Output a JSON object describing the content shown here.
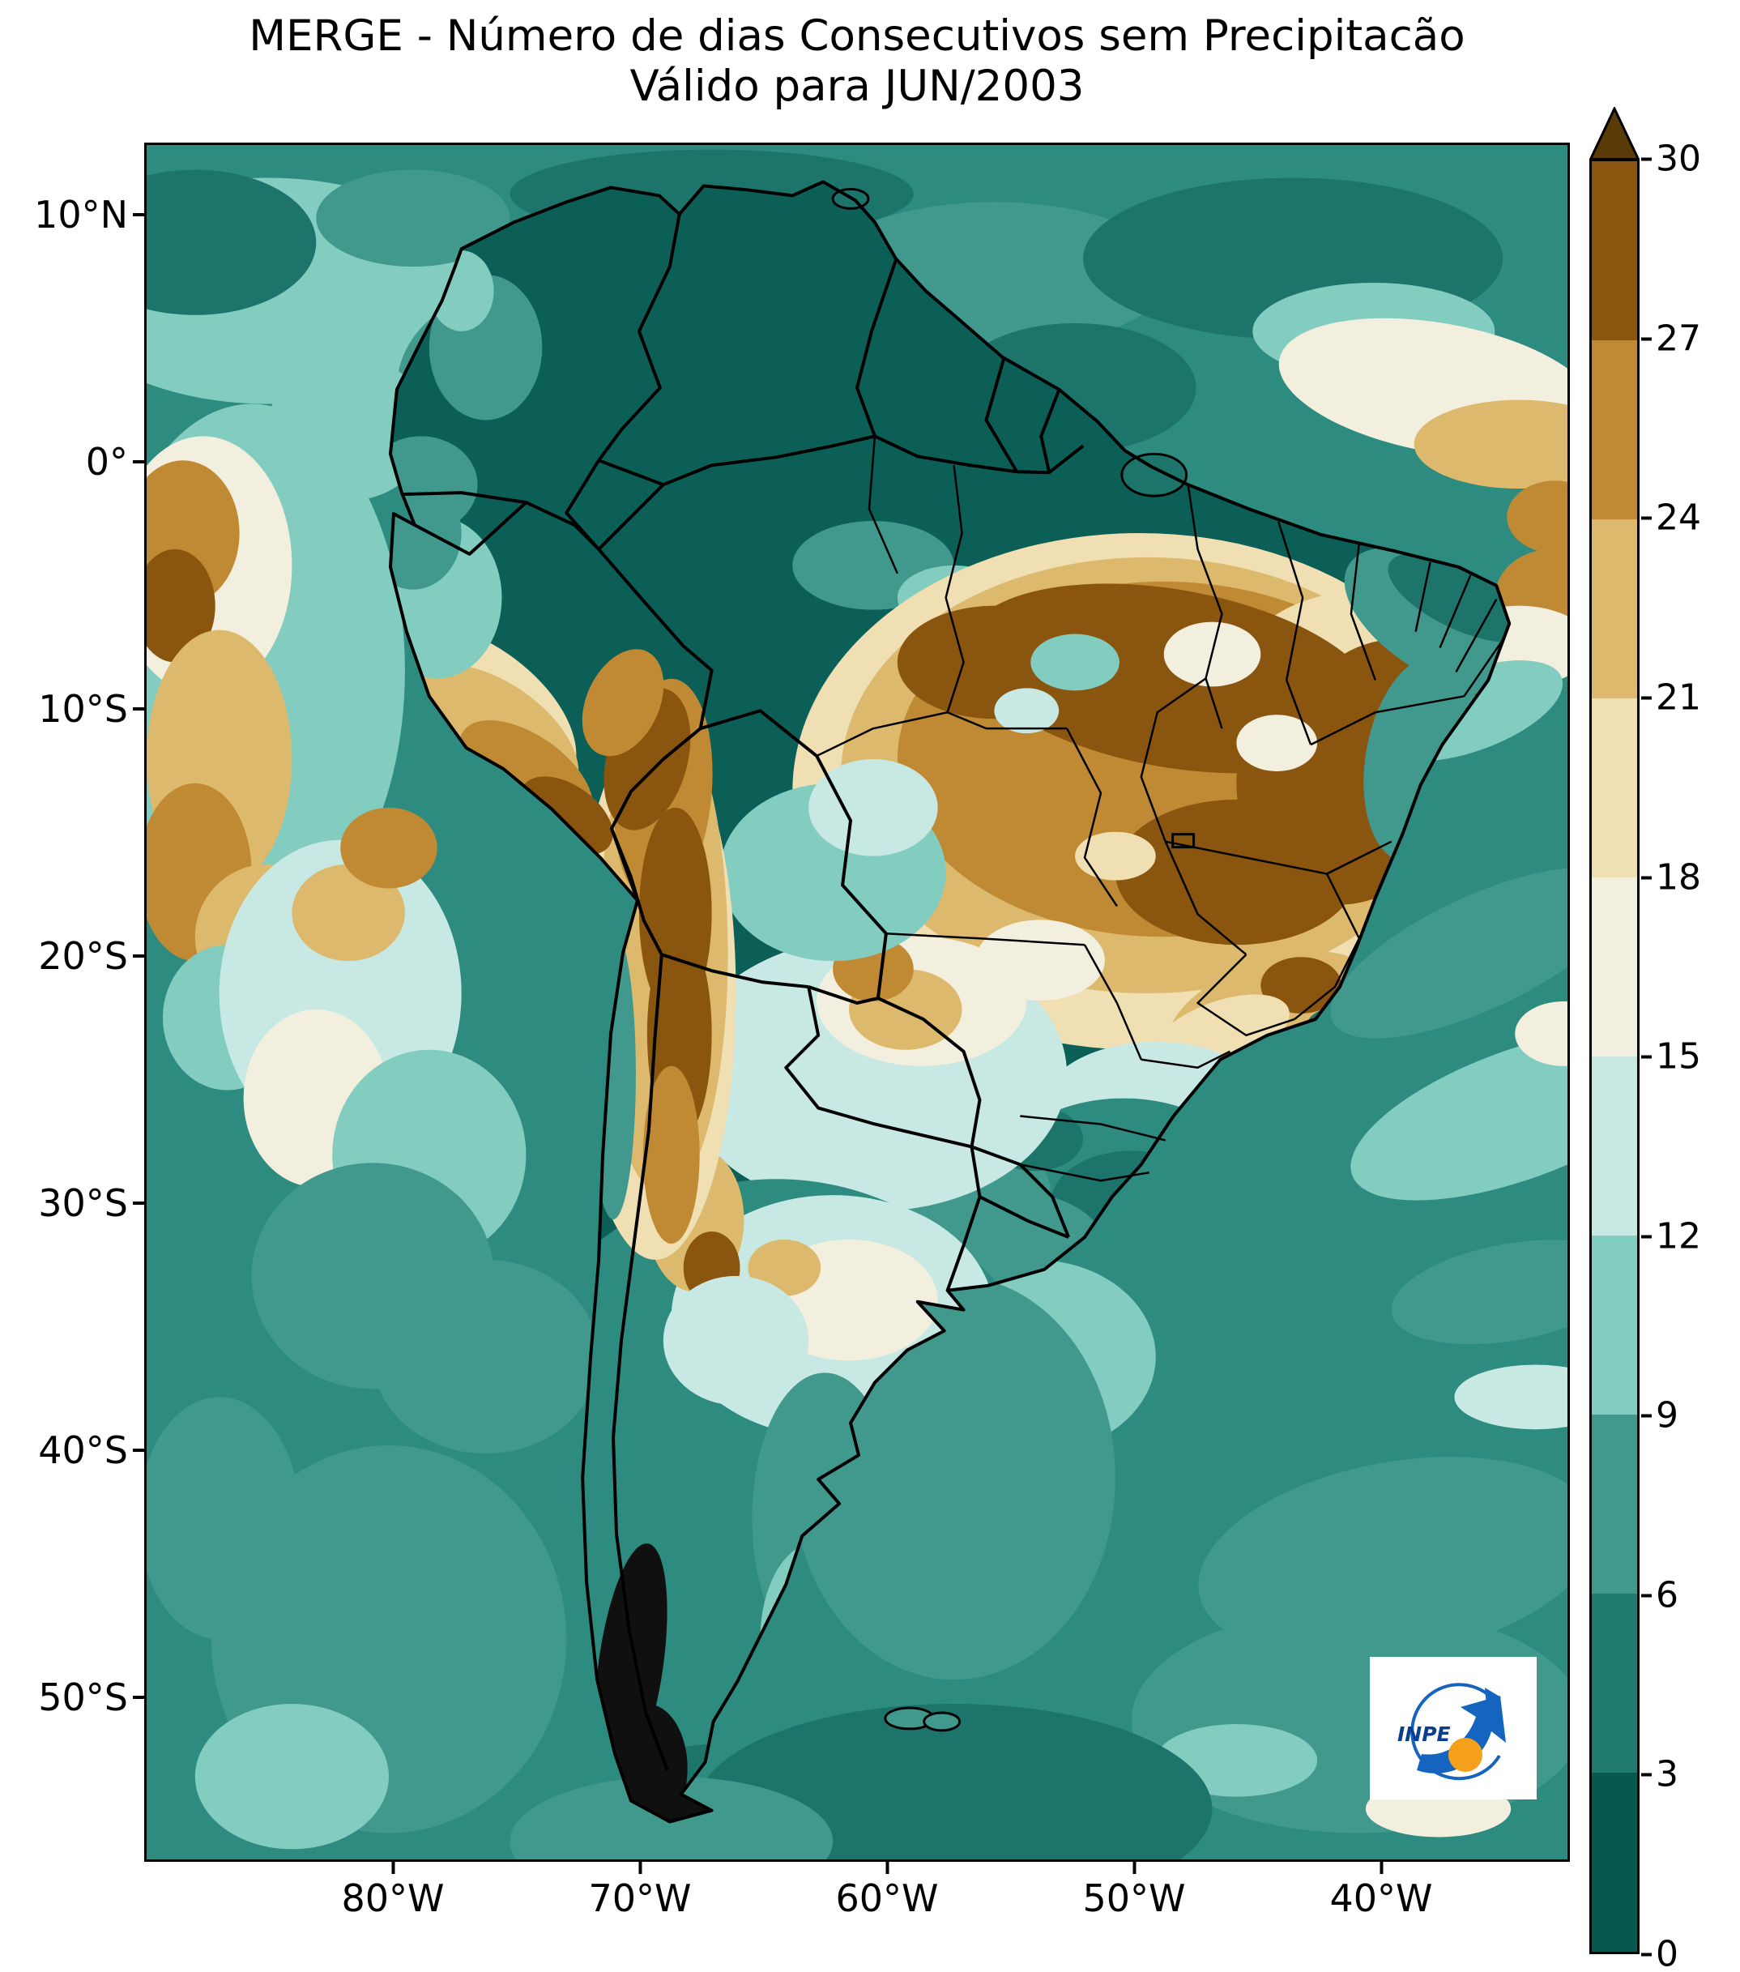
{
  "title": {
    "line1": "MERGE - Número de dias Consecutivos sem Precipitacão",
    "line2": "Válido para JUN/2003"
  },
  "axes": {
    "y_ticks": [
      "10°N",
      "0°",
      "10°S",
      "20°S",
      "30°S",
      "40°S",
      "50°S"
    ],
    "x_ticks": [
      "80°W",
      "70°W",
      "60°W",
      "50°W",
      "40°W"
    ]
  },
  "colorbar": {
    "tick_labels": [
      "0",
      "3",
      "6",
      "9",
      "12",
      "15",
      "18",
      "21",
      "24",
      "27",
      "30"
    ],
    "colors": [
      "#06594f",
      "#207a70",
      "#41998e",
      "#83ccc0",
      "#c8e9e3",
      "#f3efdf",
      "#f0dfb2",
      "#dcb96d",
      "#c08a34",
      "#8a550f"
    ],
    "extend_color": "#5a3a07"
  },
  "logo": {
    "text": "INPE",
    "blue": "#1565c0",
    "dark_blue": "#0a3f8f",
    "orange": "#f5a01b"
  }
}
